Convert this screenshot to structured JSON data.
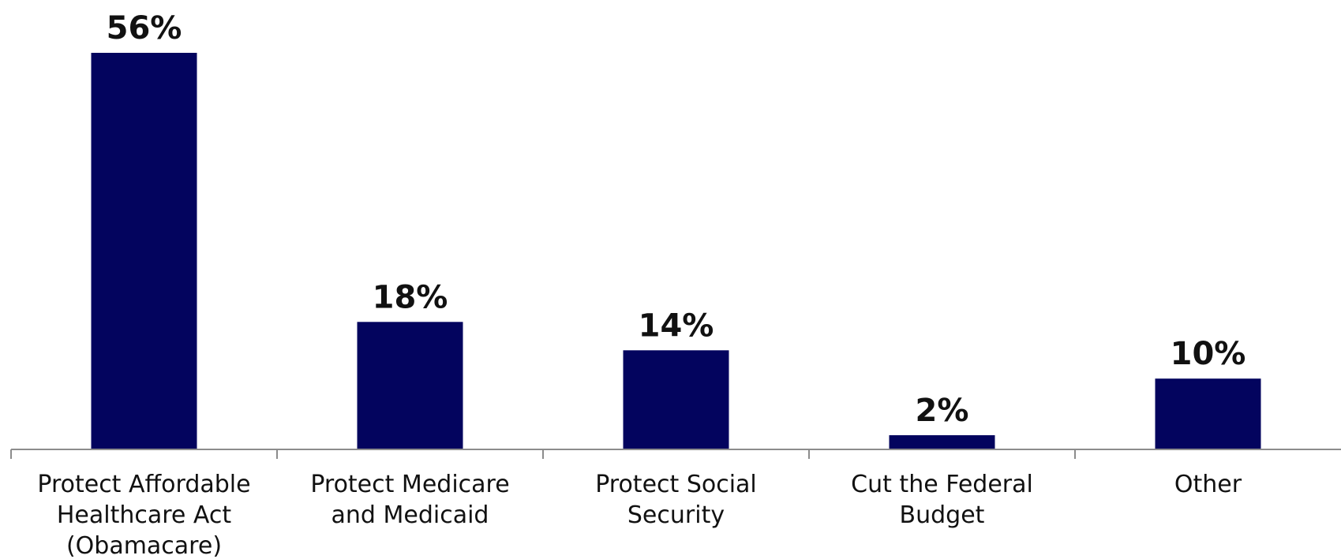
{
  "chart_data": {
    "type": "bar",
    "title": "",
    "xlabel": "",
    "ylabel": "",
    "categories": [
      [
        "Protect Affordable",
        "Healthcare Act",
        "(Obamacare)"
      ],
      [
        "Protect Medicare",
        "and Medicaid"
      ],
      [
        "Protect Social",
        "Security"
      ],
      [
        "Cut the Federal",
        "Budget"
      ],
      [
        "Other"
      ]
    ],
    "values": [
      56,
      18,
      14,
      2,
      10
    ],
    "value_labels": [
      "56%",
      "18%",
      "14%",
      "2%",
      "10%"
    ],
    "ylim": [
      0,
      56
    ],
    "grid": false,
    "legend": "none",
    "colors": {
      "bar": "#03045e",
      "axis": "#8c8c8c",
      "text": "#111111"
    }
  }
}
